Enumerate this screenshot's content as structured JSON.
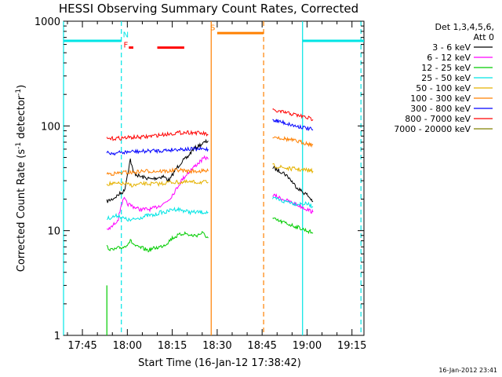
{
  "chart_data": {
    "type": "line",
    "title": "HESSI Observing Summary Count Rates, Corrected",
    "xlabel": "Start Time (16-Jan-12 17:38:42)",
    "ylabel": "Corrected Count Rate (s⁻¹ detector⁻¹)",
    "ylabel_main": "Corrected Count Rate (s",
    "ylabel_mid": " detector",
    "ylabel_end": ")",
    "ylabel_sup": "-1",
    "yscale": "log",
    "ylim": [
      1,
      1000
    ],
    "xlim": [
      "17:38:42",
      "19:19:00"
    ],
    "x_ticks": [
      "17:45",
      "18:00",
      "18:15",
      "18:30",
      "18:45",
      "19:00",
      "19:15"
    ],
    "y_ticks": [
      "1",
      "10",
      "100",
      "1000"
    ],
    "timestamp": "16-Jan-2012 23:41",
    "legend_header": [
      "Det 1,3,4,5,6,",
      "Att 0"
    ],
    "legend_placement": "top-right",
    "series": [
      {
        "name": "3 - 6 keV",
        "color": "#000000",
        "segments": [
          {
            "x": [
              "17:53:10",
              "17:55",
              "17:57",
              "17:59",
              "18:01",
              "18:02",
              "18:04",
              "18:06",
              "18:08",
              "18:10",
              "18:12",
              "18:14",
              "18:16",
              "18:18",
              "18:20",
              "18:22",
              "18:24",
              "18:26",
              "18:27"
            ],
            "y": [
              19,
              20,
              22,
              24,
              48,
              36,
              33,
              32,
              31,
              32,
              33,
              30,
              38,
              45,
              50,
              60,
              65,
              70,
              72
            ]
          },
          {
            "x": [
              "18:48:30",
              "18:50",
              "18:52",
              "18:54",
              "18:56",
              "18:58",
              "19:00",
              "19:02"
            ],
            "y": [
              40,
              38,
              36,
              32,
              27,
              24,
              22,
              19
            ]
          }
        ]
      },
      {
        "name": "6 - 12 keV",
        "color": "#ff00ff",
        "segments": [
          {
            "x": [
              "17:53:10",
              "17:55",
              "17:57",
              "17:58",
              "17:59",
              "18:00",
              "18:02",
              "18:04",
              "18:06",
              "18:08",
              "18:10",
              "18:12",
              "18:14",
              "18:16",
              "18:18",
              "18:20",
              "18:22",
              "18:24",
              "18:26",
              "18:27"
            ],
            "y": [
              10,
              11,
              13,
              18,
              20,
              18,
              17,
              16,
              16,
              16,
              17,
              18,
              20,
              24,
              30,
              35,
              40,
              45,
              50,
              48
            ]
          },
          {
            "x": [
              "18:48:30",
              "18:50",
              "18:52",
              "18:54",
              "18:56",
              "18:58",
              "19:00",
              "19:02"
            ],
            "y": [
              22,
              21,
              20,
              19,
              18,
              17,
              16,
              15
            ]
          }
        ]
      },
      {
        "name": "12 - 25 keV",
        "color": "#00cc00",
        "segments": [
          {
            "x": [
              "17:53:10",
              "17:55",
              "17:57",
              "17:59",
              "18:01",
              "18:03",
              "18:05",
              "18:07",
              "18:09",
              "18:11",
              "18:13",
              "18:15",
              "18:17",
              "18:19",
              "18:21",
              "18:23",
              "18:25",
              "18:27"
            ],
            "y": [
              7,
              6.5,
              6.8,
              7,
              8,
              7,
              6.8,
              6.5,
              6.8,
              7,
              7.5,
              8.5,
              9,
              9.5,
              9,
              9,
              9.5,
              8.5
            ]
          },
          {
            "x": [
              "18:48:30",
              "18:50",
              "18:52",
              "18:54",
              "18:56",
              "18:58",
              "19:00",
              "19:02"
            ],
            "y": [
              13,
              12.5,
              12,
              11.5,
              11,
              10.5,
              10,
              9.5
            ]
          }
        ]
      },
      {
        "name": "25 - 50 keV",
        "color": "#00e5e5",
        "segments": [
          {
            "x": [
              "17:53:10",
              "17:55",
              "17:57",
              "17:59",
              "18:01",
              "18:03",
              "18:05",
              "18:07",
              "18:09",
              "18:11",
              "18:13",
              "18:15",
              "18:17",
              "18:19",
              "18:21",
              "18:23",
              "18:25",
              "18:27"
            ],
            "y": [
              13,
              13.5,
              14,
              13,
              12.5,
              13,
              13.5,
              14,
              14,
              15,
              15,
              16,
              16,
              15.5,
              15,
              15,
              15,
              15
            ]
          },
          {
            "x": [
              "18:48:30",
              "18:50",
              "18:52",
              "18:54",
              "18:56",
              "18:58",
              "19:00",
              "19:02"
            ],
            "y": [
              20,
              20,
              19,
              19,
              18,
              18,
              18,
              17
            ]
          }
        ]
      },
      {
        "name": "50 - 100 keV",
        "color": "#e5b200",
        "segments": [
          {
            "x": [
              "17:53:10",
              "17:56",
              "17:59",
              "18:02",
              "18:05",
              "18:08",
              "18:11",
              "18:14",
              "18:17",
              "18:20",
              "18:23",
              "18:26",
              "18:27"
            ],
            "y": [
              28,
              28,
              28,
              27,
              28,
              28,
              28,
              29,
              29,
              29,
              29,
              29,
              29
            ]
          },
          {
            "x": [
              "18:48:30",
              "18:50",
              "18:52",
              "18:54",
              "18:56",
              "18:58",
              "19:00",
              "19:02"
            ],
            "y": [
              42,
              41,
              40,
              39,
              39,
              38,
              38,
              37
            ]
          }
        ]
      },
      {
        "name": "100 - 300 keV",
        "color": "#ff8000",
        "segments": [
          {
            "x": [
              "17:53:10",
              "17:56",
              "17:59",
              "18:02",
              "18:05",
              "18:08",
              "18:11",
              "18:14",
              "18:17",
              "18:20",
              "18:23",
              "18:26",
              "18:27"
            ],
            "y": [
              35,
              35,
              36,
              36,
              37,
              37,
              37,
              37,
              38,
              37,
              37,
              37,
              37
            ]
          },
          {
            "x": [
              "18:48:30",
              "18:50",
              "18:52",
              "18:54",
              "18:56",
              "18:58",
              "19:00",
              "19:02"
            ],
            "y": [
              80,
              78,
              76,
              74,
              72,
              70,
              68,
              66
            ]
          }
        ]
      },
      {
        "name": "300 - 800 keV",
        "color": "#0000ff",
        "segments": [
          {
            "x": [
              "17:53:10",
              "17:56",
              "17:59",
              "18:02",
              "18:05",
              "18:08",
              "18:11",
              "18:14",
              "18:17",
              "18:20",
              "18:23",
              "18:26",
              "18:27"
            ],
            "y": [
              55,
              55,
              56,
              57,
              57,
              58,
              58,
              59,
              60,
              60,
              60,
              60,
              60
            ]
          },
          {
            "x": [
              "18:48:30",
              "18:50",
              "18:52",
              "18:54",
              "18:56",
              "18:58",
              "19:00",
              "19:02"
            ],
            "y": [
              115,
              112,
              108,
              104,
              100,
              98,
              95,
              92
            ]
          }
        ]
      },
      {
        "name": "800 - 7000 keV",
        "color": "#ff0000",
        "segments": [
          {
            "x": [
              "17:53:10",
              "17:56",
              "17:59",
              "18:02",
              "18:05",
              "18:08",
              "18:11",
              "18:14",
              "18:17",
              "18:20",
              "18:23",
              "18:26",
              "18:27"
            ],
            "y": [
              75,
              76,
              77,
              78,
              78,
              80,
              82,
              84,
              86,
              87,
              86,
              84,
              82
            ]
          },
          {
            "x": [
              "18:48:30",
              "18:50",
              "18:52",
              "18:54",
              "18:56",
              "18:58",
              "19:00",
              "19:02"
            ],
            "y": [
              140,
              138,
              135,
              132,
              128,
              124,
              120,
              115
            ]
          }
        ]
      },
      {
        "name": "7000 - 20000 keV",
        "color": "#808000",
        "segments": []
      }
    ],
    "annotations": [
      {
        "label": "N",
        "color": "#00e5e5",
        "x": "17:59:30",
        "y": 700
      },
      {
        "label": "F",
        "color": "#ff0000",
        "x": "17:59:30",
        "y": 560
      },
      {
        "label": "S",
        "color": "#ff8000",
        "x": "18:28:30",
        "y": 820
      }
    ],
    "state_bars": [
      {
        "color": "#00e5e5",
        "from": "17:38:42",
        "to": "17:58:00",
        "y": 650
      },
      {
        "color": "#00e5e5",
        "from": "18:58:30",
        "to": "19:19:00",
        "y": 650
      },
      {
        "color": "#ff8000",
        "from": "18:30:00",
        "to": "18:45:30",
        "y": 770
      },
      {
        "color": "#ff0000",
        "from": "18:00:30",
        "to": "18:02:00",
        "y": 560
      },
      {
        "color": "#ff0000",
        "from": "18:10:00",
        "to": "18:19:00",
        "y": 560
      }
    ],
    "vlines": [
      {
        "color": "#00e5e5",
        "x": "17:38:42",
        "style": "solid"
      },
      {
        "color": "#00e5e5",
        "x": "17:58:00",
        "style": "dashed"
      },
      {
        "color": "#00cc00",
        "x": "17:53:10",
        "style": "solid",
        "ymax": 3
      },
      {
        "color": "#ff8000",
        "x": "18:28:00",
        "style": "solid"
      },
      {
        "color": "#ff8000",
        "x": "18:45:30",
        "style": "dashed"
      },
      {
        "color": "#00e5e5",
        "x": "18:58:30",
        "style": "solid"
      },
      {
        "color": "#00e5e5",
        "x": "19:18:00",
        "style": "dashed"
      }
    ],
    "grid": false
  }
}
